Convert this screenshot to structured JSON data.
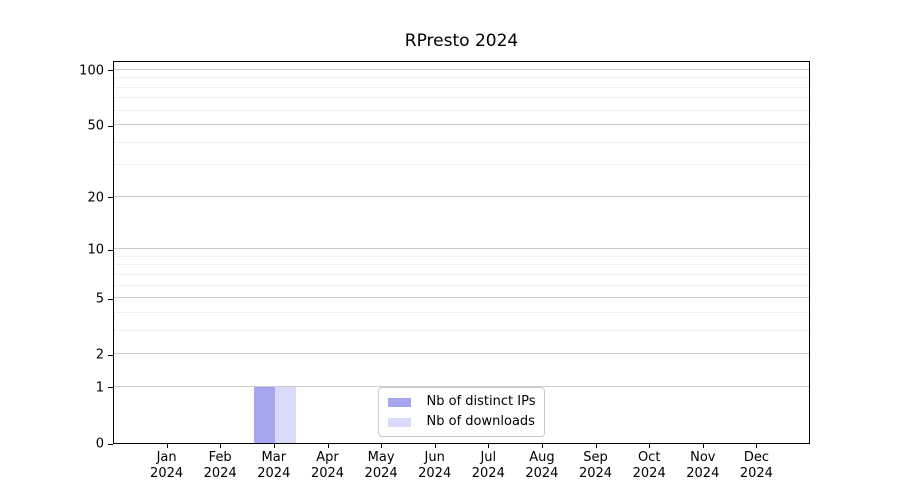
{
  "chart_data": {
    "type": "bar",
    "title": "RPresto 2024",
    "categories": [
      "Jan",
      "Feb",
      "Mar",
      "Apr",
      "May",
      "Jun",
      "Jul",
      "Aug",
      "Sep",
      "Oct",
      "Nov",
      "Dec"
    ],
    "category_year": "2024",
    "series": [
      {
        "name": "Nb of distinct IPs",
        "color": "#a6a6f0",
        "values": [
          0,
          0,
          1,
          0,
          0,
          0,
          0,
          0,
          0,
          0,
          0,
          0
        ]
      },
      {
        "name": "Nb of downloads",
        "color": "#d9d9f8",
        "values": [
          0,
          0,
          1,
          0,
          0,
          0,
          0,
          0,
          0,
          0,
          0,
          0
        ]
      }
    ],
    "xlabel": "",
    "ylabel": "",
    "y_scale": "log10(1+y)",
    "ylim": [
      0,
      113
    ],
    "y_major_ticks": [
      0,
      1,
      2,
      5,
      10,
      20,
      50,
      100
    ],
    "y_minor_gridlines": [
      3,
      4,
      6,
      7,
      8,
      9,
      30,
      40,
      60,
      70,
      80,
      90
    ],
    "grid": "horizontal",
    "legend": {
      "position": "bottom-center",
      "entries": [
        "Nb of distinct IPs",
        "Nb of downloads"
      ]
    },
    "colors": {
      "axis": "#000000",
      "major_grid": "#cdcdcd",
      "minor_grid": "#efefef",
      "background": "#ffffff",
      "legend_border": "#cbcbcb",
      "text": "#000000"
    }
  }
}
